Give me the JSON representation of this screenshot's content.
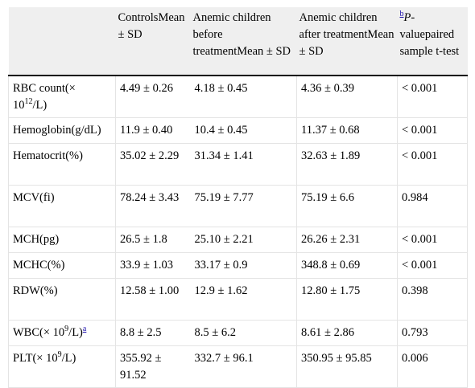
{
  "header": {
    "col0": "",
    "col1": "ControlsMean ± SD",
    "col2": "Anemic children before treatmentMean ± SD",
    "col3": "Anemic children after treatmentMean ± SD",
    "col4_sup": "b",
    "col4_p": "P",
    "col4_rest": "-valuepaired sample t-test"
  },
  "rows": [
    {
      "param_pre": "RBC count(× 10",
      "param_sup": "12",
      "param_post": "/L)",
      "controls": "4.49 ± 0.26",
      "before": "4.18 ± 0.45",
      "after": "4.36 ± 0.39",
      "p": "< 0.001"
    },
    {
      "param_pre": "Hemoglobin(g/dL)",
      "param_sup": "",
      "param_post": "",
      "controls": "11.9 ± 0.40",
      "before": "10.4 ± 0.45",
      "after": "11.37 ± 0.68",
      "p": "< 0.001"
    },
    {
      "param_pre": "Hematocrit(%)",
      "param_sup": "",
      "param_post": "",
      "controls": "35.02 ± 2.29",
      "before": "31.34 ± 1.41",
      "after": "32.63 ± 1.89",
      "p": "< 0.001"
    },
    {
      "param_pre": "MCV(fi)",
      "param_sup": "",
      "param_post": "",
      "controls": "78.24 ± 3.43",
      "before": "75.19 ± 7.77",
      "after": "75.19 ± 6.6",
      "p": "0.984"
    },
    {
      "param_pre": "MCH(pg)",
      "param_sup": "",
      "param_post": "",
      "controls": "26.5 ± 1.8",
      "before": "25.10 ± 2.21",
      "after": "26.26 ± 2.31",
      "p": "< 0.001"
    },
    {
      "param_pre": "MCHC(%)",
      "param_sup": "",
      "param_post": "",
      "controls": "33.9 ± 1.03",
      "before": "33.17 ± 0.9",
      "after": "348.8 ± 0.69",
      "p": "< 0.001"
    },
    {
      "param_pre": "RDW(%)",
      "param_sup": "",
      "param_post": "",
      "controls": "12.58 ± 1.00",
      "before": "12.9 ± 1.62",
      "after": "12.80 ± 1.75",
      "p": "0.398"
    },
    {
      "param_pre": "WBC(× 10",
      "param_sup": "9",
      "param_post": "/L)",
      "param_fn": "a",
      "controls": "8.8 ± 2.5",
      "before": "8.5 ± 6.2",
      "after": "8.61 ± 2.86",
      "p": "0.793"
    },
    {
      "param_pre": "PLT(× 10",
      "param_sup": "9",
      "param_post": "/L)",
      "controls": "355.92 ± 91.52",
      "before": "332.7 ± 96.1",
      "after": "350.95 ± 95.85",
      "p": "0.006"
    }
  ]
}
